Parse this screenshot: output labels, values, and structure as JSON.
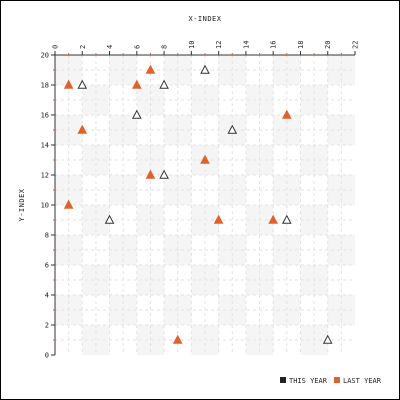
{
  "chart_data": {
    "type": "scatter",
    "title": "",
    "xlabel": "X-INDEX",
    "ylabel": "Y-INDEX",
    "xlim": [
      0,
      22
    ],
    "ylim": [
      0,
      20
    ],
    "x_ticks": [
      0,
      2,
      4,
      6,
      8,
      10,
      12,
      14,
      16,
      18,
      20,
      22
    ],
    "y_ticks": [
      0,
      2,
      4,
      6,
      8,
      10,
      12,
      14,
      16,
      18,
      20
    ],
    "x_axis_position": "top",
    "grid": true,
    "legend_position": "bottom-right",
    "series": [
      {
        "name": "THIS YEAR",
        "color": "#ffffff",
        "marker": "triangle-outline",
        "points": [
          [
            2,
            18
          ],
          [
            6,
            16
          ],
          [
            8,
            18
          ],
          [
            11,
            19
          ],
          [
            13,
            15
          ],
          [
            8,
            12
          ],
          [
            4,
            9
          ],
          [
            17,
            9
          ],
          [
            20,
            1
          ]
        ]
      },
      {
        "name": "LAST YEAR",
        "color": "#e0622a",
        "marker": "triangle-filled",
        "points": [
          [
            1,
            18
          ],
          [
            6,
            18
          ],
          [
            7,
            19
          ],
          [
            2,
            15
          ],
          [
            17,
            16
          ],
          [
            11,
            13
          ],
          [
            7,
            12
          ],
          [
            1,
            10
          ],
          [
            12,
            9
          ],
          [
            16,
            9
          ],
          [
            9,
            1
          ]
        ]
      }
    ]
  }
}
